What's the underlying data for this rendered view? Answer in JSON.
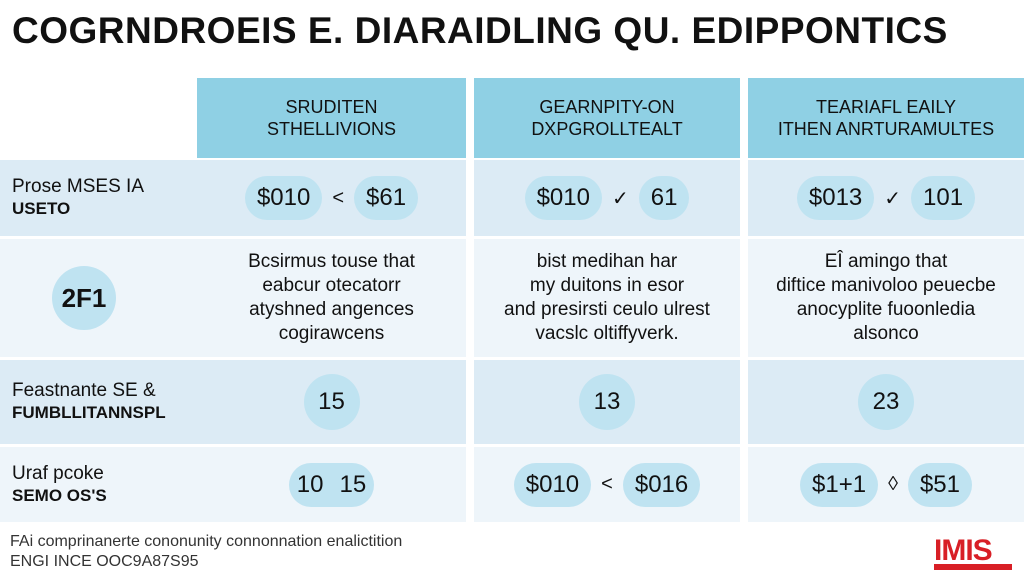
{
  "title": "COGRNDROEIS E. DIARAIDLING QU. EDIPPONTICS",
  "headers": [
    {
      "line1": "SRUDITEN",
      "line2": "STHELLIVIONS"
    },
    {
      "line1": "GEARNPITY-ON",
      "line2": "DXPGROLLTEALT"
    },
    {
      "line1": "TEARIAFL EAILY",
      "line2": "ITHEN ANRTURAMULTES"
    }
  ],
  "rows": [
    {
      "label": "Prose MSES IA",
      "sub": "USETO",
      "cells": [
        {
          "a": "$010",
          "sep": "<",
          "b": "$61"
        },
        {
          "a": "$010",
          "sep": "✓",
          "b": "61"
        },
        {
          "a": "$013",
          "sep": "✓",
          "b": "101"
        }
      ]
    },
    {
      "label": "2F1",
      "cells": [
        {
          "text": "Bcsirmus touse that\neabcur otecatorr\natyshned angences\ncogirawcens"
        },
        {
          "text": "bist medihan har\nmy duitons in esor\nand presirsti ceulo ulrest\nvacslc oltiffyverk."
        },
        {
          "text": "EÎ amingo that\ndiftice manivoloo peuecbe\nanocyplite fuoonledia\nalsonco"
        }
      ]
    },
    {
      "label": "Feastnante SE &",
      "sub": "FUMBLLITANNSPL",
      "cells": [
        {
          "value": "15"
        },
        {
          "value": "13"
        },
        {
          "value": "23"
        }
      ]
    },
    {
      "label": "Uraf pcoke",
      "sub": "SEMO OS'S",
      "cells": [
        {
          "a": "10",
          "sep": "",
          "b": "15"
        },
        {
          "a": "$010",
          "sep": "<",
          "b": "$016"
        },
        {
          "a": "$1+1",
          "sep": "◊",
          "b": "$51"
        }
      ]
    }
  ],
  "footer": {
    "line1": "FAi comprinanerte cononunity connonnation enalictition",
    "line2": "ENGI INCE OOC9A87S95"
  },
  "logo": "IMIS"
}
